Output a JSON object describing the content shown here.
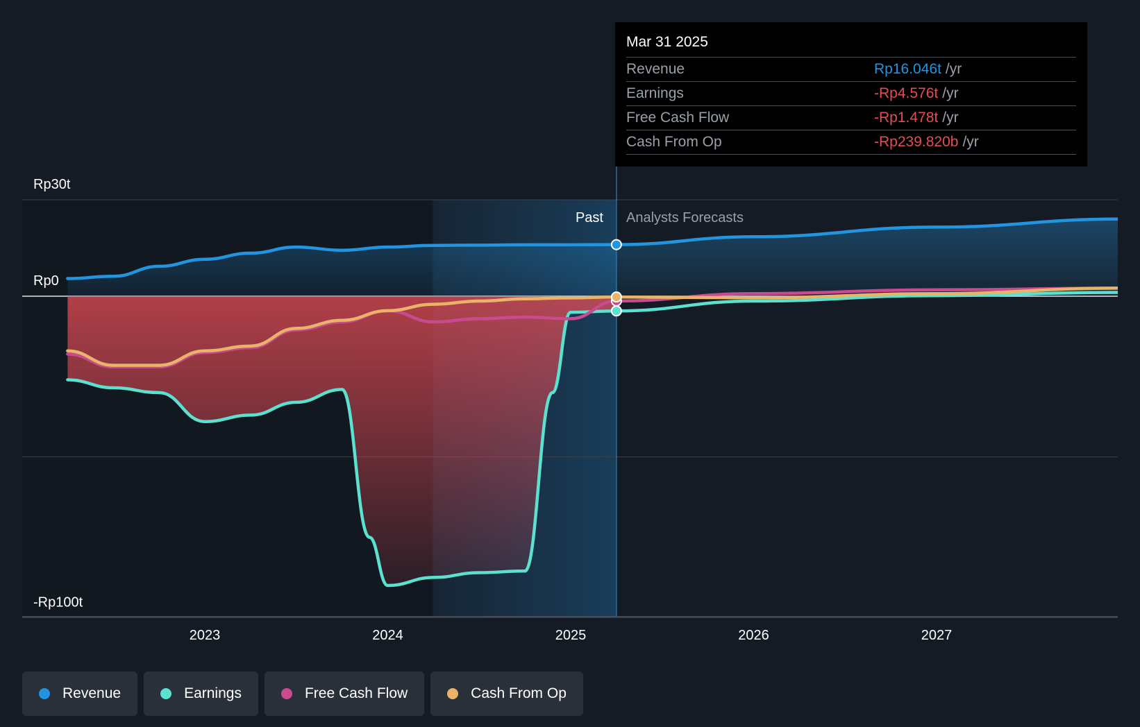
{
  "tooltip": {
    "date": "Mar 31 2025",
    "rows": [
      {
        "label": "Revenue",
        "value": "Rp16.046t",
        "unit": "/yr",
        "color": "#2394df"
      },
      {
        "label": "Earnings",
        "value": "-Rp4.576t",
        "unit": "/yr",
        "color": "#e64c56"
      },
      {
        "label": "Free Cash Flow",
        "value": "-Rp1.478t",
        "unit": "/yr",
        "color": "#e64c56"
      },
      {
        "label": "Cash From Op",
        "value": "-Rp239.820b",
        "unit": "/yr",
        "color": "#e64c56"
      }
    ]
  },
  "labels": {
    "past": "Past",
    "forecast": "Analysts Forecasts"
  },
  "legend": [
    {
      "label": "Revenue",
      "color": "#2394df"
    },
    {
      "label": "Earnings",
      "color": "#5ce0cf"
    },
    {
      "label": "Free Cash Flow",
      "color": "#c94a8f"
    },
    {
      "label": "Cash From Op",
      "color": "#e9b46a"
    }
  ],
  "chart_data": {
    "type": "line",
    "title": "",
    "xlabel": "",
    "ylabel": "",
    "y_tick_labels": [
      {
        "value": 30,
        "label": "Rp30t"
      },
      {
        "value": 0,
        "label": "Rp0"
      },
      {
        "value": -100,
        "label": "-Rp100t"
      }
    ],
    "x_tick_labels": [
      {
        "value": 2023,
        "label": "2023"
      },
      {
        "value": 2024,
        "label": "2024"
      },
      {
        "value": 2025,
        "label": "2025"
      },
      {
        "value": 2026,
        "label": "2026"
      },
      {
        "value": 2027,
        "label": "2027"
      }
    ],
    "xlim": [
      2022.0,
      2028.0
    ],
    "ylim": [
      -100,
      30
    ],
    "past_region_start": 2024.25,
    "forecast_start": 2025.25,
    "grid": "horizontal",
    "series": [
      {
        "name": "Revenue",
        "color": "#2394df",
        "x": [
          2022.25,
          2022.5,
          2022.75,
          2023.0,
          2023.25,
          2023.5,
          2023.75,
          2024.0,
          2024.25,
          2024.5,
          2024.75,
          2025.0,
          2025.25,
          2026.0,
          2027.0,
          2028.0
        ],
        "y": [
          5.5,
          6.2,
          9.3,
          11.5,
          13.4,
          15.3,
          14.3,
          15.3,
          15.8,
          15.9,
          16.0,
          16.0,
          16.046,
          18.5,
          21.5,
          24.0
        ]
      },
      {
        "name": "Earnings",
        "color": "#5ce0cf",
        "x": [
          2022.25,
          2022.5,
          2022.75,
          2023.0,
          2023.25,
          2023.5,
          2023.75,
          2023.9,
          2024.0,
          2024.25,
          2024.5,
          2024.75,
          2024.9,
          2025.0,
          2025.25,
          2026.0,
          2027.0,
          2028.0
        ],
        "y": [
          -26.0,
          -28.5,
          -30.0,
          -39.0,
          -37.0,
          -33.0,
          -29.0,
          -75.0,
          -90.0,
          -87.5,
          -86.0,
          -85.5,
          -30.0,
          -5.0,
          -4.576,
          -1.5,
          0.2,
          1.2
        ]
      },
      {
        "name": "Free Cash Flow",
        "color": "#c94a8f",
        "x": [
          2022.25,
          2022.5,
          2022.75,
          2023.0,
          2023.25,
          2023.5,
          2023.75,
          2024.0,
          2024.25,
          2024.5,
          2024.75,
          2025.0,
          2025.25,
          2026.0,
          2027.0,
          2028.0
        ],
        "y": [
          -18.0,
          -22.0,
          -22.0,
          -17.5,
          -16.0,
          -10.5,
          -8.0,
          -4.5,
          -8.0,
          -7.0,
          -6.5,
          -7.0,
          -1.478,
          0.8,
          2.0,
          2.5
        ]
      },
      {
        "name": "Cash From Op",
        "color": "#e9b46a",
        "x": [
          2022.25,
          2022.5,
          2022.75,
          2023.0,
          2023.25,
          2023.5,
          2023.75,
          2024.0,
          2024.25,
          2024.5,
          2024.75,
          2025.0,
          2025.25,
          2026.0,
          2027.0,
          2028.0
        ],
        "y": [
          -17.0,
          -21.5,
          -21.5,
          -17.0,
          -15.5,
          -10.0,
          -7.5,
          -4.5,
          -2.5,
          -1.5,
          -0.8,
          -0.5,
          -0.24,
          -0.5,
          0.8,
          2.5
        ]
      }
    ]
  }
}
